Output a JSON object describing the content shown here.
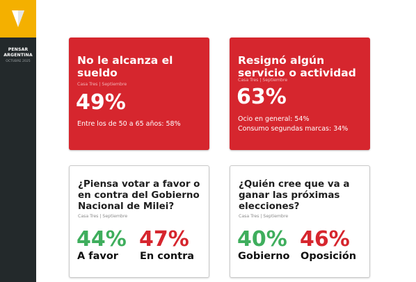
{
  "sidebar": {
    "brand_line1": "PENSAR",
    "brand_line2": "ARGENTINA",
    "date": "OCTUBRE 2025",
    "icon": "triangle-logo-icon"
  },
  "colors": {
    "red": "#d6262e",
    "green": "#3fae5d",
    "sidebar": "#23292b",
    "accent_yellow": "#f4b000"
  },
  "cards": [
    {
      "title": "No le alcanza el sueldo",
      "source": "Casa Tres | Septiembre",
      "value": "49%",
      "details": [
        "Entre los de 50 a 65 años: 58%"
      ]
    },
    {
      "title": "Resignó algún servicio o actividad",
      "source": "Casa Tres | Septiembre",
      "value": "63%",
      "details": [
        "Ocio en general: 54%",
        "Consumo segundas marcas: 34%"
      ]
    },
    {
      "title": "¿Piensa votar a favor o en contra del Gobierno Nacional de Milei?",
      "source": "Casa Tres | Septiembre",
      "results": [
        {
          "value": "44%",
          "label": "A favor"
        },
        {
          "value": "47%",
          "label": "En contra"
        }
      ]
    },
    {
      "title": "¿Quién cree que va a ganar las próximas elecciones?",
      "source": "Casa Tres | Septiembre",
      "results": [
        {
          "value": "40%",
          "label": "Gobierno"
        },
        {
          "value": "46%",
          "label": "Oposición"
        }
      ]
    }
  ]
}
